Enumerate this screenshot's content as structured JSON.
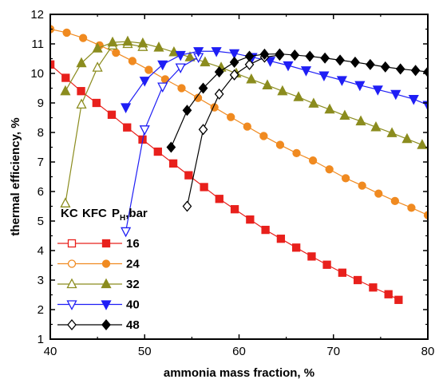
{
  "chart_data": {
    "type": "line",
    "xlabel": "ammonia mass fraction, %",
    "ylabel": "thermal efficiency, %",
    "xlim": [
      40,
      80
    ],
    "ylim": [
      1,
      12
    ],
    "xticks": [
      "40",
      "50",
      "60",
      "70",
      "80"
    ],
    "yticks": [
      "1",
      "2",
      "3",
      "4",
      "5",
      "6",
      "7",
      "8",
      "9",
      "10",
      "11",
      "12"
    ],
    "grid": false,
    "legend_position": "lower-left",
    "legend_header": {
      "kc": "KC",
      "kfc": "KFC",
      "ph_main": "P",
      "ph_sub": "H",
      "ph_unit": ",bar"
    },
    "series": [
      {
        "name": "16",
        "color": "#e8201c",
        "marker": "square",
        "kc": {
          "x": [
            40
          ],
          "y": [
            10.3
          ]
        },
        "kfc": {
          "x": [
            40,
            41.63,
            43.26,
            44.89,
            46.51,
            48.14,
            49.77,
            51.4,
            53.03,
            54.66,
            56.29,
            57.91,
            59.54,
            61.17,
            62.8,
            64.43,
            66.06,
            67.69,
            69.31,
            70.94,
            72.57,
            74.2,
            75.83,
            76.9
          ],
          "y": [
            10.3,
            9.85,
            9.4,
            9.0,
            8.6,
            8.17,
            7.76,
            7.35,
            6.95,
            6.55,
            6.15,
            5.75,
            5.4,
            5.05,
            4.7,
            4.4,
            4.1,
            3.8,
            3.52,
            3.25,
            3.0,
            2.75,
            2.52,
            2.33
          ]
        }
      },
      {
        "name": "24",
        "color": "#f08a20",
        "marker": "circle",
        "kc": {
          "x": [
            40
          ],
          "y": [
            11.5
          ]
        },
        "kfc": {
          "x": [
            40,
            41.74,
            43.48,
            45.22,
            46.96,
            48.7,
            50.43,
            52.17,
            53.91,
            55.65,
            57.39,
            59.13,
            60.87,
            62.61,
            64.35,
            66.09,
            67.83,
            69.57,
            71.3,
            73.04,
            74.78,
            76.52,
            78.26,
            80
          ],
          "y": [
            11.5,
            11.38,
            11.2,
            10.95,
            10.7,
            10.42,
            10.12,
            9.8,
            9.5,
            9.17,
            8.85,
            8.52,
            8.2,
            7.88,
            7.58,
            7.3,
            7.05,
            6.75,
            6.45,
            6.2,
            5.93,
            5.68,
            5.45,
            5.2
          ]
        }
      },
      {
        "name": "32",
        "color": "#8b8c1e",
        "marker": "triangle-up",
        "kc": {
          "x": [
            41.6,
            43.3,
            45.0,
            46.6,
            48.2,
            49.8
          ],
          "y": [
            5.6,
            8.95,
            10.2,
            10.95,
            11.0,
            10.9
          ]
        },
        "kfc": {
          "x": [
            41.6,
            43.3,
            45.0,
            46.6,
            48.2,
            49.8,
            51.5,
            53.1,
            54.8,
            56.4,
            58.1,
            59.7,
            61.3,
            63.0,
            64.6,
            66.3,
            67.9,
            69.6,
            71.2,
            72.9,
            74.5,
            76.2,
            77.8,
            79.4
          ],
          "y": [
            9.4,
            10.35,
            10.85,
            11.05,
            11.08,
            11.02,
            10.88,
            10.72,
            10.55,
            10.38,
            10.2,
            10.0,
            9.8,
            9.6,
            9.4,
            9.2,
            8.98,
            8.78,
            8.57,
            8.38,
            8.18,
            7.98,
            7.78,
            7.58
          ]
        }
      },
      {
        "name": "40",
        "color": "#1f1ef5",
        "marker": "triangle-down",
        "kc": {
          "x": [
            48.0,
            50.0,
            51.9,
            53.8,
            55.7
          ],
          "y": [
            4.65,
            8.1,
            9.55,
            10.2,
            10.55
          ]
        },
        "kfc": {
          "x": [
            48.0,
            50.0,
            51.9,
            53.8,
            55.7,
            57.6,
            59.5,
            61.4,
            63.3,
            65.2,
            67.1,
            69.0,
            70.9,
            72.8,
            74.7,
            76.6,
            78.5,
            80
          ],
          "y": [
            8.85,
            9.75,
            10.3,
            10.62,
            10.75,
            10.75,
            10.68,
            10.55,
            10.42,
            10.27,
            10.1,
            9.93,
            9.77,
            9.6,
            9.45,
            9.3,
            9.13,
            8.93
          ]
        }
      },
      {
        "name": "48",
        "color": "#000000",
        "marker": "diamond",
        "kc": {
          "x": [
            54.5,
            56.2,
            57.9,
            59.5,
            61.1,
            62.7,
            64.3
          ],
          "y": [
            5.5,
            8.1,
            9.3,
            9.95,
            10.3,
            10.55,
            10.62
          ]
        },
        "kfc": {
          "x": [
            52.8,
            54.5,
            56.2,
            57.9,
            59.5,
            61.1,
            62.7,
            64.3,
            65.9,
            67.5,
            69.1,
            70.7,
            72.3,
            73.9,
            75.5,
            77.1,
            78.7,
            80
          ],
          "y": [
            7.5,
            8.75,
            9.5,
            10.05,
            10.38,
            10.58,
            10.65,
            10.66,
            10.62,
            10.58,
            10.52,
            10.45,
            10.38,
            10.3,
            10.22,
            10.15,
            10.1,
            10.05
          ]
        }
      }
    ]
  }
}
